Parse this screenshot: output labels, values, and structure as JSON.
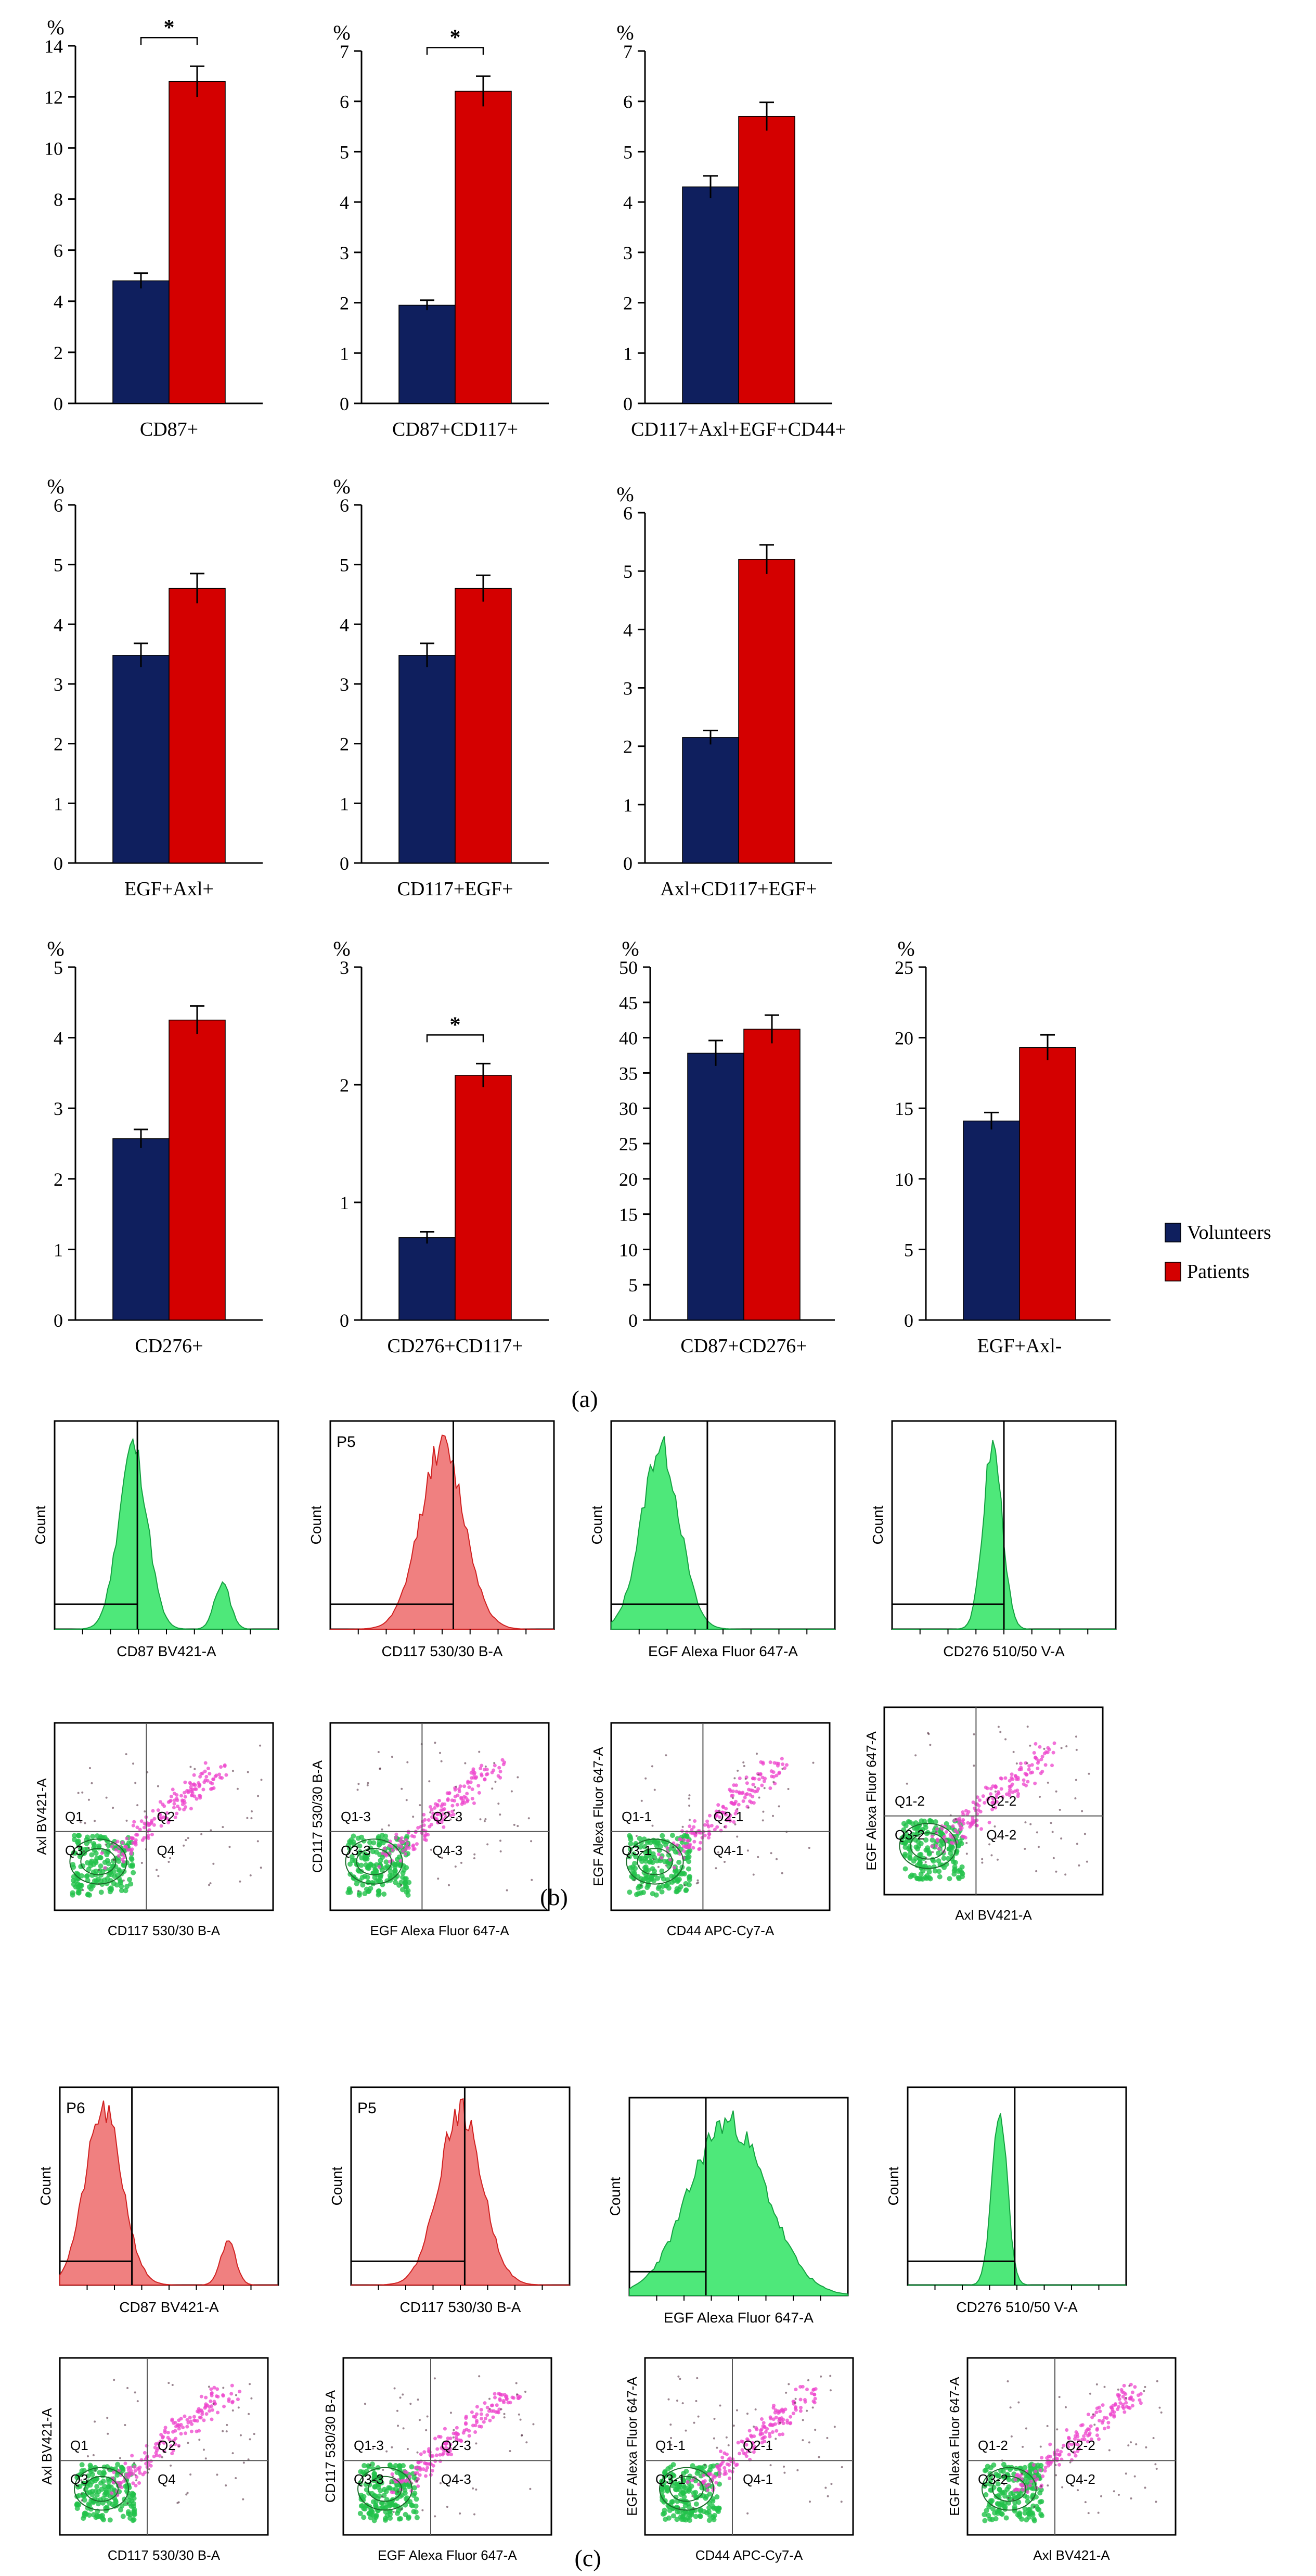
{
  "figure": {
    "panel_labels": [
      "(a)",
      "(b)",
      "(c)"
    ],
    "legend": {
      "entries": [
        {
          "name": "Volunteers",
          "color": "#0f1f5e"
        },
        {
          "name": "Patients",
          "color": "#d40000"
        }
      ]
    },
    "unit_label": "%",
    "significance_marker": "*"
  },
  "chart_data": [
    {
      "type": "bar",
      "xlabel": "CD87+",
      "ylabel": "%",
      "ylim": [
        0,
        14
      ],
      "yticks": [
        0,
        2,
        4,
        6,
        8,
        10,
        12,
        14
      ],
      "series": [
        {
          "name": "Volunteers",
          "value": 4.8,
          "error": 0.3
        },
        {
          "name": "Patients",
          "value": 12.6,
          "error": 0.6
        }
      ],
      "significant": true
    },
    {
      "type": "bar",
      "xlabel": "CD87+CD117+",
      "ylabel": "%",
      "ylim": [
        0,
        7
      ],
      "yticks": [
        0,
        1,
        2,
        3,
        4,
        5,
        6,
        7
      ],
      "series": [
        {
          "name": "Volunteers",
          "value": 1.95,
          "error": 0.1
        },
        {
          "name": "Patients",
          "value": 6.2,
          "error": 0.3
        }
      ],
      "significant": true
    },
    {
      "type": "bar",
      "xlabel": "CD117+Axl+EGF+CD44+",
      "ylabel": "%",
      "ylim": [
        0,
        7
      ],
      "yticks": [
        0,
        1,
        2,
        3,
        4,
        5,
        6,
        7
      ],
      "series": [
        {
          "name": "Volunteers",
          "value": 4.3,
          "error": 0.22
        },
        {
          "name": "Patients",
          "value": 5.7,
          "error": 0.28
        }
      ],
      "significant": false
    },
    {
      "type": "bar",
      "xlabel": "EGF+Axl+",
      "ylabel": "%",
      "ylim": [
        0,
        6
      ],
      "yticks": [
        0,
        1,
        2,
        3,
        4,
        5,
        6
      ],
      "series": [
        {
          "name": "Volunteers",
          "value": 3.48,
          "error": 0.2
        },
        {
          "name": "Patients",
          "value": 4.6,
          "error": 0.25
        }
      ],
      "significant": false
    },
    {
      "type": "bar",
      "xlabel": "CD117+EGF+",
      "ylabel": "%",
      "ylim": [
        0,
        6
      ],
      "yticks": [
        0,
        1,
        2,
        3,
        4,
        5,
        6
      ],
      "series": [
        {
          "name": "Volunteers",
          "value": 3.48,
          "error": 0.2
        },
        {
          "name": "Patients",
          "value": 4.6,
          "error": 0.22
        }
      ],
      "significant": false
    },
    {
      "type": "bar",
      "xlabel": "Axl+CD117+EGF+",
      "ylabel": "%",
      "ylim": [
        0,
        6
      ],
      "yticks": [
        0,
        1,
        2,
        3,
        4,
        5,
        6
      ],
      "series": [
        {
          "name": "Volunteers",
          "value": 2.15,
          "error": 0.12
        },
        {
          "name": "Patients",
          "value": 5.2,
          "error": 0.25
        }
      ],
      "significant": false
    },
    {
      "type": "bar",
      "xlabel": "CD276+",
      "ylabel": "%",
      "ylim": [
        0,
        5
      ],
      "yticks": [
        0,
        1,
        2,
        3,
        4,
        5
      ],
      "series": [
        {
          "name": "Volunteers",
          "value": 2.57,
          "error": 0.13
        },
        {
          "name": "Patients",
          "value": 4.25,
          "error": 0.2
        }
      ],
      "significant": false
    },
    {
      "type": "bar",
      "xlabel": "CD276+CD117+",
      "ylabel": "%",
      "ylim": [
        0,
        3
      ],
      "yticks": [
        0,
        1,
        2,
        3
      ],
      "series": [
        {
          "name": "Volunteers",
          "value": 0.7,
          "error": 0.05
        },
        {
          "name": "Patients",
          "value": 2.08,
          "error": 0.1
        }
      ],
      "significant": true
    },
    {
      "type": "bar",
      "xlabel": "CD87+CD276+",
      "ylabel": "%",
      "ylim": [
        0,
        50
      ],
      "yticks": [
        0,
        5,
        10,
        15,
        20,
        25,
        30,
        35,
        40,
        45,
        50
      ],
      "series": [
        {
          "name": "Volunteers",
          "value": 37.8,
          "error": 1.8
        },
        {
          "name": "Patients",
          "value": 41.2,
          "error": 2.0
        }
      ],
      "significant": false
    },
    {
      "type": "bar",
      "xlabel": "EGF+Axl-",
      "ylabel": "%",
      "ylim": [
        0,
        25
      ],
      "yticks": [
        0,
        5,
        10,
        15,
        20,
        25
      ],
      "series": [
        {
          "name": "Volunteers",
          "value": 14.1,
          "error": 0.6
        },
        {
          "name": "Patients",
          "value": 19.3,
          "error": 0.9
        }
      ],
      "significant": false
    }
  ],
  "flow_b": {
    "histograms": [
      {
        "xlabel": "CD87 BV421-A",
        "ylabel": "Count",
        "gate": ""
      },
      {
        "xlabel": "CD117 530/30 B-A",
        "ylabel": "Count",
        "gate": "P5"
      },
      {
        "xlabel": "EGF Alexa Fluor 647-A",
        "ylabel": "Count",
        "gate": ""
      },
      {
        "xlabel": "CD276 510/50 V-A",
        "ylabel": "Count",
        "gate": ""
      }
    ],
    "dotplots": [
      {
        "xlabel": "CD117 530/30 B-A",
        "ylabel": "Axl BV421-A",
        "quadrants": [
          "Q1",
          "Q2",
          "Q3",
          "Q4"
        ]
      },
      {
        "xlabel": "EGF Alexa Fluor 647-A",
        "ylabel": "CD117 530/30 B-A",
        "quadrants": [
          "Q1-3",
          "Q2-3",
          "Q3-3",
          "Q4-3"
        ]
      },
      {
        "xlabel": "CD44 APC-Cy7-A",
        "ylabel": "EGF Alexa Fluor 647-A",
        "quadrants": [
          "Q1-1",
          "Q2-1",
          "Q3-1",
          "Q4-1"
        ]
      },
      {
        "xlabel": "Axl BV421-A",
        "ylabel": "EGF Alexa Fluor 647-A",
        "quadrants": [
          "Q1-2",
          "Q2-2",
          "Q3-2",
          "Q4-2"
        ]
      }
    ]
  },
  "flow_c": {
    "histograms": [
      {
        "xlabel": "CD87 BV421-A",
        "ylabel": "Count",
        "gate": "P6"
      },
      {
        "xlabel": "CD117 530/30 B-A",
        "ylabel": "Count",
        "gate": "P5"
      },
      {
        "xlabel": "EGF Alexa Fluor 647-A",
        "ylabel": "Count",
        "gate": ""
      },
      {
        "xlabel": "CD276 510/50 V-A",
        "ylabel": "Count",
        "gate": ""
      }
    ],
    "dotplots": [
      {
        "xlabel": "CD117 530/30 B-A",
        "ylabel": "Axl BV421-A",
        "quadrants": [
          "Q1",
          "Q2",
          "Q3",
          "Q4"
        ]
      },
      {
        "xlabel": "EGF Alexa Fluor 647-A",
        "ylabel": "CD117 530/30 B-A",
        "quadrants": [
          "Q1-3",
          "Q2-3",
          "Q3-3",
          "Q4-3"
        ]
      },
      {
        "xlabel": "CD44 APC-Cy7-A",
        "ylabel": "EGF Alexa Fluor 647-A",
        "quadrants": [
          "Q1-1",
          "Q2-1",
          "Q3-1",
          "Q4-1"
        ]
      },
      {
        "xlabel": "Axl BV421-A",
        "ylabel": "EGF Alexa Fluor 647-A",
        "quadrants": [
          "Q1-2",
          "Q2-2",
          "Q3-2",
          "Q4-2"
        ]
      }
    ]
  }
}
